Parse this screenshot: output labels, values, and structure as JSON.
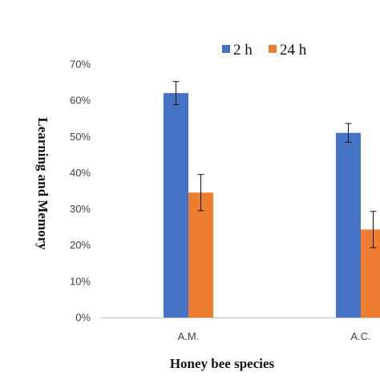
{
  "chart_data": {
    "type": "bar",
    "title": "",
    "xlabel": "Honey bee species",
    "ylabel": "Learning and Memory",
    "categories": [
      "A.M.",
      "A.C."
    ],
    "series": [
      {
        "name": "2 h",
        "color": "#4472c4",
        "values": [
          62,
          51
        ],
        "errors": [
          3.2,
          2.6
        ]
      },
      {
        "name": "24 h",
        "color": "#ed7d31",
        "values": [
          34.5,
          24.3
        ],
        "errors": [
          5.0,
          5.0
        ]
      }
    ],
    "ylim": [
      0,
      70
    ],
    "yticks": [
      0,
      10,
      20,
      30,
      40,
      50,
      60,
      70
    ],
    "ytick_labels": [
      "0%",
      "10%",
      "20%",
      "30%",
      "40%",
      "50%",
      "60%",
      "70%"
    ],
    "grid": false,
    "legend_position": "top"
  }
}
